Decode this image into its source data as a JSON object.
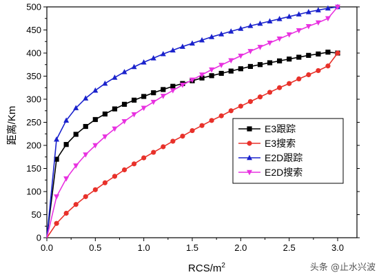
{
  "chart_data": {
    "type": "line",
    "title": "",
    "xlabel": "RCS/m",
    "xlabel_sup": "2",
    "ylabel": "距离/Km",
    "xlim": [
      0.0,
      3.0
    ],
    "ylim": [
      0,
      500
    ],
    "xticks": [
      "0.0",
      "0.5",
      "1.0",
      "1.5",
      "2.0",
      "2.5",
      "3.0"
    ],
    "yticks": [
      "0",
      "50",
      "100",
      "150",
      "200",
      "250",
      "300",
      "350",
      "400",
      "450",
      "500"
    ],
    "grid": false,
    "legend_position": "right-middle",
    "x": [
      0.0,
      0.1,
      0.2,
      0.3,
      0.4,
      0.5,
      0.6,
      0.7,
      0.8,
      0.9,
      1.0,
      1.1,
      1.2,
      1.3,
      1.4,
      1.5,
      1.6,
      1.7,
      1.8,
      1.9,
      2.0,
      2.1,
      2.2,
      2.3,
      2.4,
      2.5,
      2.6,
      2.7,
      2.8,
      2.9,
      3.0
    ],
    "series": [
      {
        "name": "E3跟踪",
        "color": "#000000",
        "marker": "square",
        "values": [
          0,
          170,
          202,
          224,
          241,
          256,
          268,
          279,
          289,
          298,
          306,
          314,
          321,
          328,
          334,
          340,
          346,
          351,
          356,
          361,
          366,
          371,
          375,
          379,
          383,
          387,
          391,
          395,
          398,
          402,
          400
        ]
      },
      {
        "name": "E3搜索",
        "color": "#e8312a",
        "marker": "circle",
        "values": [
          0,
          31,
          53,
          72,
          89,
          104,
          119,
          133,
          147,
          160,
          173,
          185,
          197,
          209,
          220,
          232,
          243,
          254,
          264,
          275,
          285,
          295,
          305,
          315,
          325,
          334,
          344,
          353,
          362,
          372,
          400
        ]
      },
      {
        "name": "E2D跟踪",
        "color": "#1a22cc",
        "marker": "triangle-up",
        "values": [
          0,
          213,
          254,
          281,
          302,
          319,
          334,
          347,
          359,
          370,
          380,
          389,
          398,
          406,
          414,
          421,
          428,
          435,
          441,
          447,
          453,
          459,
          464,
          469,
          474,
          479,
          484,
          489,
          493,
          497,
          500
        ]
      },
      {
        "name": "E2D搜索",
        "color": "#e831e0",
        "marker": "triangle-down",
        "values": [
          0,
          89,
          128,
          156,
          180,
          200,
          219,
          236,
          252,
          267,
          281,
          294,
          307,
          319,
          331,
          342,
          353,
          364,
          374,
          384,
          394,
          404,
          413,
          422,
          431,
          440,
          449,
          458,
          466,
          475,
          500
        ]
      }
    ]
  },
  "watermark": "头条 @止水兴波"
}
